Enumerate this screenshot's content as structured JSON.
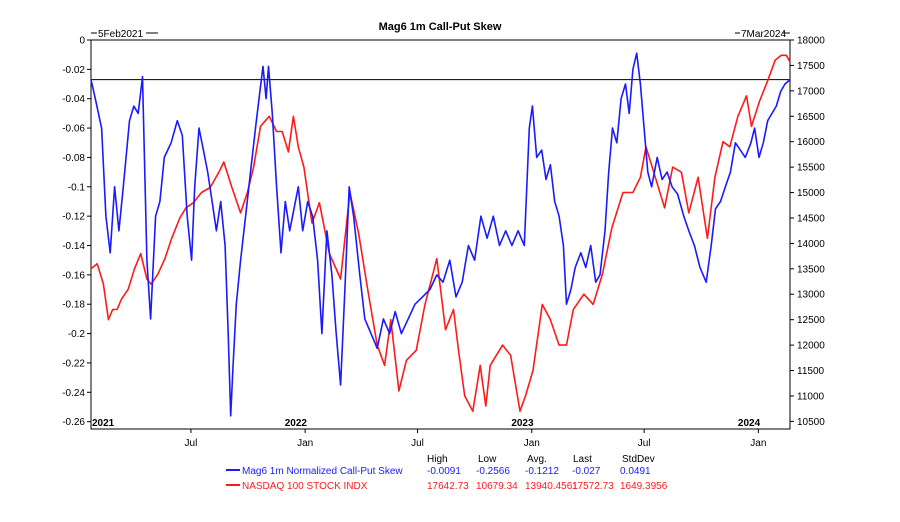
{
  "chart_data": {
    "type": "line",
    "title": "Mag6 1m Call-Put Skew",
    "date_start": "5Feb2021",
    "date_end": "7Mar2024",
    "x_tick_labels": [
      "2021",
      "Jul",
      "2022",
      "Jan",
      "Jul",
      "2023",
      "Jan",
      "Jul",
      "2024",
      "Jan"
    ],
    "y_left": {
      "ylim": [
        -0.265,
        0
      ],
      "ticks": [
        "0",
        "-0.02",
        "-0.04",
        "-0.06",
        "-0.08",
        "-0.1",
        "-0.12",
        "-0.14",
        "-0.16",
        "-0.18",
        "-0.2",
        "-0.22",
        "-0.24",
        "-0.26"
      ]
    },
    "y_right": {
      "ylim": [
        10350,
        18000
      ],
      "ticks": [
        "18000",
        "17500",
        "17000",
        "16500",
        "16000",
        "15500",
        "15000",
        "14500",
        "14000",
        "13500",
        "13000",
        "12500",
        "12000",
        "11500",
        "11000",
        "10500"
      ]
    },
    "reference_line": -0.027,
    "series": [
      {
        "name": "Mag6 1m Normalized Call-Put Skew",
        "color": "#1a1aff",
        "axis": "left",
        "points": [
          [
            "2021-02-05",
            -0.027
          ],
          [
            "2021-02-12",
            -0.04
          ],
          [
            "2021-02-22",
            -0.06
          ],
          [
            "2021-03-01",
            -0.12
          ],
          [
            "2021-03-08",
            -0.145
          ],
          [
            "2021-03-15",
            -0.1
          ],
          [
            "2021-03-22",
            -0.13
          ],
          [
            "2021-03-29",
            -0.1
          ],
          [
            "2021-04-08",
            -0.055
          ],
          [
            "2021-04-15",
            -0.045
          ],
          [
            "2021-04-22",
            -0.05
          ],
          [
            "2021-04-29",
            -0.025
          ],
          [
            "2021-05-06",
            -0.15
          ],
          [
            "2021-05-12",
            -0.19
          ],
          [
            "2021-05-20",
            -0.12
          ],
          [
            "2021-05-27",
            -0.11
          ],
          [
            "2021-06-03",
            -0.08
          ],
          [
            "2021-06-14",
            -0.07
          ],
          [
            "2021-06-24",
            -0.055
          ],
          [
            "2021-07-02",
            -0.065
          ],
          [
            "2021-07-10",
            -0.12
          ],
          [
            "2021-07-17",
            -0.15
          ],
          [
            "2021-07-22",
            -0.1
          ],
          [
            "2021-07-29",
            -0.06
          ],
          [
            "2021-08-05",
            -0.075
          ],
          [
            "2021-08-12",
            -0.09
          ],
          [
            "2021-08-19",
            -0.11
          ],
          [
            "2021-08-26",
            -0.13
          ],
          [
            "2021-09-02",
            -0.11
          ],
          [
            "2021-09-09",
            -0.14
          ],
          [
            "2021-09-14",
            -0.2
          ],
          [
            "2021-09-18",
            -0.256
          ],
          [
            "2021-09-22",
            -0.22
          ],
          [
            "2021-09-27",
            -0.18
          ],
          [
            "2021-10-04",
            -0.15
          ],
          [
            "2021-10-12",
            -0.12
          ],
          [
            "2021-10-20",
            -0.09
          ],
          [
            "2021-10-28",
            -0.06
          ],
          [
            "2021-11-04",
            -0.035
          ],
          [
            "2021-11-09",
            -0.018
          ],
          [
            "2021-11-14",
            -0.04
          ],
          [
            "2021-11-18",
            -0.018
          ],
          [
            "2021-11-24",
            -0.05
          ],
          [
            "2021-12-01",
            -0.1
          ],
          [
            "2021-12-08",
            -0.145
          ],
          [
            "2021-12-15",
            -0.11
          ],
          [
            "2021-12-22",
            -0.13
          ],
          [
            "2022-01-05",
            -0.1
          ],
          [
            "2022-01-12",
            -0.13
          ],
          [
            "2022-01-20",
            -0.11
          ],
          [
            "2022-01-28",
            -0.12
          ],
          [
            "2022-02-05",
            -0.15
          ],
          [
            "2022-02-12",
            -0.2
          ],
          [
            "2022-02-20",
            -0.13
          ],
          [
            "2022-02-28",
            -0.16
          ],
          [
            "2022-03-07",
            -0.2
          ],
          [
            "2022-03-14",
            -0.235
          ],
          [
            "2022-03-21",
            -0.17
          ],
          [
            "2022-03-28",
            -0.1
          ],
          [
            "2022-04-04",
            -0.12
          ],
          [
            "2022-04-14",
            -0.16
          ],
          [
            "2022-04-22",
            -0.19
          ],
          [
            "2022-05-02",
            -0.2
          ],
          [
            "2022-05-12",
            -0.21
          ],
          [
            "2022-05-22",
            -0.19
          ],
          [
            "2022-06-01",
            -0.2
          ],
          [
            "2022-06-10",
            -0.185
          ],
          [
            "2022-06-20",
            -0.2
          ],
          [
            "2022-07-01",
            -0.19
          ],
          [
            "2022-07-12",
            -0.18
          ],
          [
            "2022-07-24",
            -0.175
          ],
          [
            "2022-08-05",
            -0.17
          ],
          [
            "2022-08-16",
            -0.16
          ],
          [
            "2022-08-26",
            -0.165
          ],
          [
            "2022-09-06",
            -0.15
          ],
          [
            "2022-09-16",
            -0.175
          ],
          [
            "2022-09-26",
            -0.165
          ],
          [
            "2022-10-06",
            -0.14
          ],
          [
            "2022-10-16",
            -0.15
          ],
          [
            "2022-10-26",
            -0.12
          ],
          [
            "2022-11-05",
            -0.135
          ],
          [
            "2022-11-15",
            -0.12
          ],
          [
            "2022-11-25",
            -0.14
          ],
          [
            "2022-12-05",
            -0.13
          ],
          [
            "2022-12-15",
            -0.14
          ],
          [
            "2022-12-25",
            -0.13
          ],
          [
            "2023-01-04",
            -0.14
          ],
          [
            "2023-01-12",
            -0.06
          ],
          [
            "2023-01-17",
            -0.045
          ],
          [
            "2023-01-24",
            -0.08
          ],
          [
            "2023-02-01",
            -0.075
          ],
          [
            "2023-02-08",
            -0.095
          ],
          [
            "2023-02-15",
            -0.085
          ],
          [
            "2023-02-22",
            -0.11
          ],
          [
            "2023-03-01",
            -0.12
          ],
          [
            "2023-03-08",
            -0.14
          ],
          [
            "2023-03-13",
            -0.18
          ],
          [
            "2023-03-20",
            -0.17
          ],
          [
            "2023-03-27",
            -0.155
          ],
          [
            "2023-04-05",
            -0.145
          ],
          [
            "2023-04-13",
            -0.155
          ],
          [
            "2023-04-21",
            -0.14
          ],
          [
            "2023-04-29",
            -0.165
          ],
          [
            "2023-05-06",
            -0.16
          ],
          [
            "2023-05-14",
            -0.13
          ],
          [
            "2023-05-20",
            -0.09
          ],
          [
            "2023-05-26",
            -0.06
          ],
          [
            "2023-06-02",
            -0.07
          ],
          [
            "2023-06-09",
            -0.04
          ],
          [
            "2023-06-16",
            -0.03
          ],
          [
            "2023-06-22",
            -0.05
          ],
          [
            "2023-06-28",
            -0.02
          ],
          [
            "2023-07-04",
            -0.009
          ],
          [
            "2023-07-10",
            -0.03
          ],
          [
            "2023-07-16",
            -0.06
          ],
          [
            "2023-07-22",
            -0.09
          ],
          [
            "2023-07-28",
            -0.1
          ],
          [
            "2023-08-06",
            -0.08
          ],
          [
            "2023-08-14",
            -0.095
          ],
          [
            "2023-08-22",
            -0.09
          ],
          [
            "2023-08-30",
            -0.1
          ],
          [
            "2023-09-08",
            -0.105
          ],
          [
            "2023-09-18",
            -0.12
          ],
          [
            "2023-09-26",
            -0.13
          ],
          [
            "2023-10-05",
            -0.14
          ],
          [
            "2023-10-14",
            -0.155
          ],
          [
            "2023-10-24",
            -0.165
          ],
          [
            "2023-11-01",
            -0.14
          ],
          [
            "2023-11-08",
            -0.115
          ],
          [
            "2023-11-16",
            -0.11
          ],
          [
            "2023-11-24",
            -0.1
          ],
          [
            "2023-12-02",
            -0.09
          ],
          [
            "2023-12-10",
            -0.07
          ],
          [
            "2023-12-18",
            -0.075
          ],
          [
            "2023-12-26",
            -0.08
          ],
          [
            "2024-01-04",
            -0.07
          ],
          [
            "2024-01-10",
            -0.06
          ],
          [
            "2024-01-17",
            -0.08
          ],
          [
            "2024-01-24",
            -0.07
          ],
          [
            "2024-01-31",
            -0.055
          ],
          [
            "2024-02-07",
            -0.05
          ],
          [
            "2024-02-14",
            -0.045
          ],
          [
            "2024-02-21",
            -0.035
          ],
          [
            "2024-02-28",
            -0.03
          ],
          [
            "2024-03-07",
            -0.027
          ]
        ],
        "stats": {
          "high": "-0.0091",
          "low": "-0.2566",
          "avg": "-0.1212",
          "last": "-0.027",
          "stddev": "0.0491"
        }
      },
      {
        "name": "NASDAQ 100 STOCK INDX",
        "color": "#ff1a1a",
        "axis": "right",
        "points": [
          [
            "2021-02-05",
            13500
          ],
          [
            "2021-02-15",
            13600
          ],
          [
            "2021-02-25",
            13200
          ],
          [
            "2021-03-05",
            12500
          ],
          [
            "2021-03-12",
            12700
          ],
          [
            "2021-03-19",
            12700
          ],
          [
            "2021-03-26",
            12900
          ],
          [
            "2021-04-06",
            13100
          ],
          [
            "2021-04-16",
            13500
          ],
          [
            "2021-04-26",
            13800
          ],
          [
            "2021-05-06",
            13300
          ],
          [
            "2021-05-13",
            13200
          ],
          [
            "2021-05-24",
            13400
          ],
          [
            "2021-06-04",
            13700
          ],
          [
            "2021-06-15",
            14100
          ],
          [
            "2021-06-28",
            14500
          ],
          [
            "2021-07-08",
            14700
          ],
          [
            "2021-07-20",
            14800
          ],
          [
            "2021-08-02",
            15000
          ],
          [
            "2021-08-16",
            15100
          ],
          [
            "2021-08-30",
            15400
          ],
          [
            "2021-09-07",
            15600
          ],
          [
            "2021-09-20",
            15100
          ],
          [
            "2021-10-04",
            14600
          ],
          [
            "2021-10-15",
            15000
          ],
          [
            "2021-10-25",
            15500
          ],
          [
            "2021-11-05",
            16300
          ],
          [
            "2021-11-19",
            16500
          ],
          [
            "2021-12-01",
            16200
          ],
          [
            "2021-12-10",
            16200
          ],
          [
            "2021-12-20",
            15800
          ],
          [
            "2021-12-28",
            16500
          ],
          [
            "2022-01-05",
            15900
          ],
          [
            "2022-01-14",
            15500
          ],
          [
            "2022-01-27",
            14400
          ],
          [
            "2022-02-08",
            14800
          ],
          [
            "2022-02-24",
            13800
          ],
          [
            "2022-03-14",
            13300
          ],
          [
            "2022-03-29",
            15000
          ],
          [
            "2022-04-12",
            14200
          ],
          [
            "2022-04-28",
            13000
          ],
          [
            "2022-05-12",
            12000
          ],
          [
            "2022-05-24",
            11600
          ],
          [
            "2022-06-03",
            12500
          ],
          [
            "2022-06-16",
            11100
          ],
          [
            "2022-06-28",
            11700
          ],
          [
            "2022-07-14",
            11900
          ],
          [
            "2022-07-28",
            12800
          ],
          [
            "2022-08-16",
            13700
          ],
          [
            "2022-08-30",
            12300
          ],
          [
            "2022-09-12",
            12700
          ],
          [
            "2022-09-20",
            11900
          ],
          [
            "2022-09-30",
            11000
          ],
          [
            "2022-10-13",
            10700
          ],
          [
            "2022-10-25",
            11600
          ],
          [
            "2022-11-03",
            10800
          ],
          [
            "2022-11-10",
            11600
          ],
          [
            "2022-11-30",
            12000
          ],
          [
            "2022-12-13",
            11800
          ],
          [
            "2022-12-28",
            10700
          ],
          [
            "2023-01-06",
            11000
          ],
          [
            "2023-01-18",
            11500
          ],
          [
            "2023-02-02",
            12800
          ],
          [
            "2023-02-15",
            12500
          ],
          [
            "2023-03-01",
            12000
          ],
          [
            "2023-03-13",
            12000
          ],
          [
            "2023-03-24",
            12700
          ],
          [
            "2023-04-10",
            13000
          ],
          [
            "2023-04-25",
            12800
          ],
          [
            "2023-05-10",
            13400
          ],
          [
            "2023-05-25",
            14300
          ],
          [
            "2023-06-12",
            15000
          ],
          [
            "2023-06-28",
            15000
          ],
          [
            "2023-07-10",
            15300
          ],
          [
            "2023-07-19",
            15900
          ],
          [
            "2023-08-03",
            15300
          ],
          [
            "2023-08-18",
            14700
          ],
          [
            "2023-08-31",
            15500
          ],
          [
            "2023-09-14",
            15400
          ],
          [
            "2023-09-26",
            14600
          ],
          [
            "2023-10-11",
            15300
          ],
          [
            "2023-10-26",
            14100
          ],
          [
            "2023-11-07",
            15300
          ],
          [
            "2023-11-20",
            16000
          ],
          [
            "2023-12-01",
            15900
          ],
          [
            "2023-12-14",
            16500
          ],
          [
            "2023-12-28",
            16900
          ],
          [
            "2024-01-05",
            16300
          ],
          [
            "2024-01-18",
            16800
          ],
          [
            "2024-01-31",
            17200
          ],
          [
            "2024-02-12",
            17600
          ],
          [
            "2024-02-22",
            17700
          ],
          [
            "2024-03-01",
            17700
          ],
          [
            "2024-03-07",
            17572.73
          ]
        ],
        "stats": {
          "high": "17642.73",
          "low": "10679.34",
          "avg": "13940.4561",
          "last": "17572.73",
          "stddev": "1649.3956"
        }
      }
    ],
    "stats_headers": [
      "High",
      "Low",
      "Avg.",
      "Last",
      "StdDev"
    ]
  }
}
